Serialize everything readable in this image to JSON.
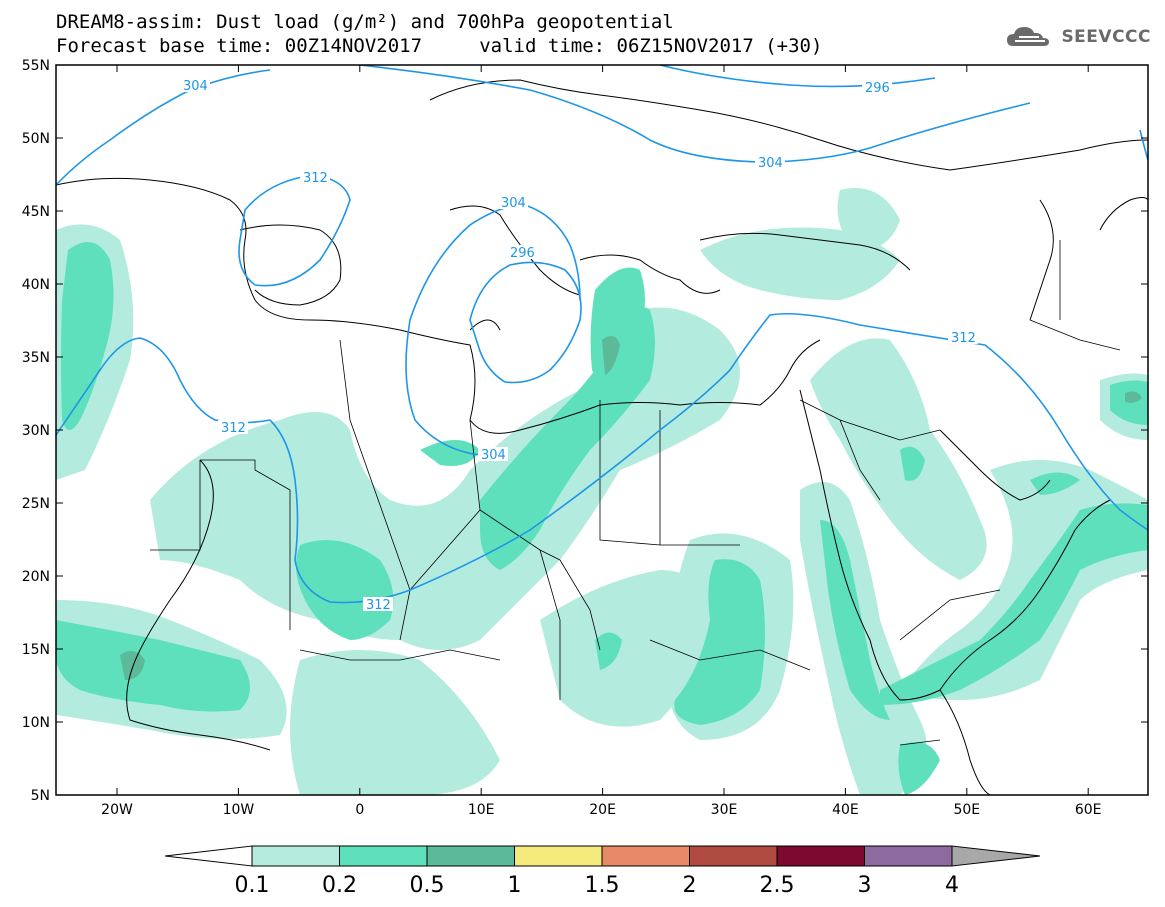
{
  "header": {
    "title_line1": "DREAM8-assim: Dust load (g/m²) and 700hPa geopotential",
    "title_line2": "Forecast base time: 00Z14NOV2017     valid time: 06Z15NOV2017 (+30)",
    "logo_text": "SEEVCCC",
    "logo_icon": "cloud-icon"
  },
  "map": {
    "lat_labels": [
      "55N",
      "50N",
      "45N",
      "40N",
      "35N",
      "30N",
      "25N",
      "20N",
      "15N",
      "10N",
      "5N"
    ],
    "lon_labels": [
      "20W",
      "10W",
      "0",
      "10E",
      "20E",
      "30E",
      "40E",
      "50E",
      "60E"
    ],
    "contour_labels": [
      "304",
      "312",
      "304",
      "296",
      "312",
      "304",
      "296",
      "304",
      "312",
      "312"
    ],
    "contour_color": "#1e96e8"
  },
  "colorbar": {
    "labels": [
      "0.1",
      "0.2",
      "0.5",
      "1",
      "1.5",
      "2",
      "2.5",
      "3",
      "4"
    ],
    "colors": [
      "#ffffff",
      "#b3ecdf",
      "#5fe0bd",
      "#5cb99a",
      "#f5ea7c",
      "#e88a68",
      "#b04b40",
      "#7d0830",
      "#8d6aa0",
      "#a8a8a8"
    ]
  }
}
